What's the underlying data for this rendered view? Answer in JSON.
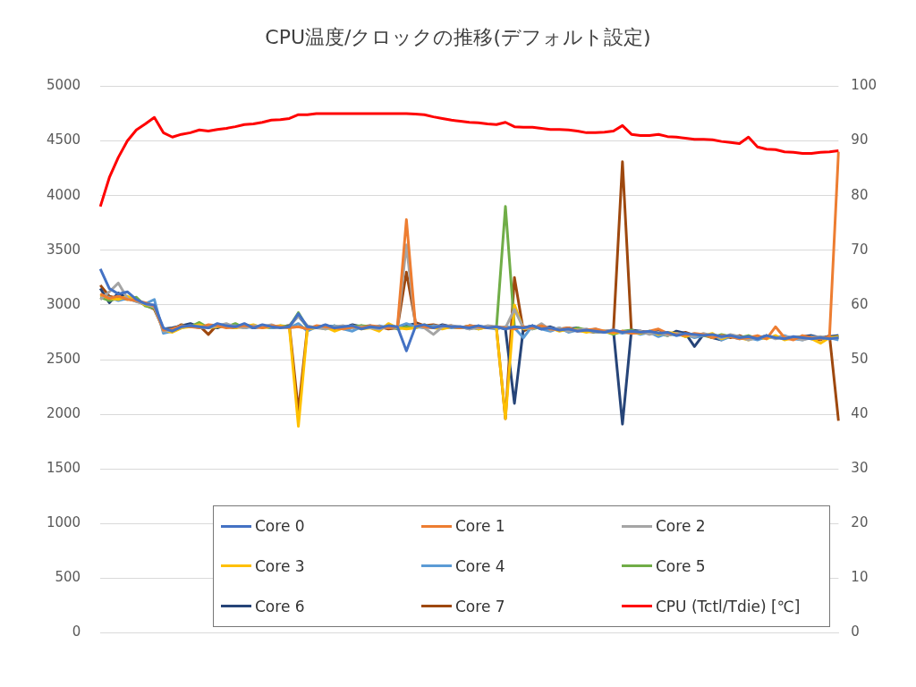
{
  "chart_data": {
    "type": "line",
    "title": "CPU温度/クロックの推移(デフォルト設定)",
    "categories": [
      null,
      null,
      null,
      null,
      null,
      null,
      null,
      null,
      null,
      null,
      null,
      null,
      null,
      null,
      null,
      null,
      null,
      null,
      null,
      null,
      null,
      null,
      null,
      null,
      null,
      null,
      null,
      null,
      null,
      null,
      null,
      null,
      null,
      null,
      null,
      null,
      null,
      null,
      null,
      null,
      null,
      null,
      null,
      null,
      null,
      null,
      null,
      null,
      null,
      null,
      null,
      null,
      null,
      null,
      null,
      null,
      null,
      null,
      null,
      null,
      null,
      null,
      null,
      null,
      null,
      null,
      null,
      null,
      null,
      null,
      null,
      null,
      null,
      null,
      null,
      null,
      null,
      null,
      null,
      null,
      null,
      null,
      null
    ],
    "ylim": [
      0,
      5000
    ],
    "yticks": [
      0,
      500,
      1000,
      1500,
      2000,
      2500,
      3000,
      3500,
      4000,
      4500,
      5000
    ],
    "y2lim": [
      0,
      100
    ],
    "y2ticks": [
      0,
      10,
      20,
      30,
      40,
      50,
      60,
      70,
      80,
      90,
      100
    ],
    "grid": "y",
    "legend": "bottom",
    "marker": "none",
    "line_style": "solid",
    "series": [
      {
        "name": "Core 0",
        "color": "#4472c4",
        "values": [
          3330,
          3150,
          3100,
          3120,
          3050,
          3010,
          3000,
          2790,
          2760,
          2800,
          2810,
          2800,
          2790,
          2830,
          2810,
          2800,
          2830,
          2790,
          2820,
          2800,
          2790,
          2800,
          2920,
          2800,
          2790,
          2820,
          2790,
          2800,
          2810,
          2780,
          2800,
          2790,
          2810,
          2800,
          2580,
          2800,
          2820,
          2790,
          2810,
          2800,
          2800,
          2790,
          2810,
          2790,
          2800,
          2780,
          2800,
          2790,
          2810,
          2780,
          2790,
          2770,
          2780,
          2760,
          2770,
          2760,
          2750,
          2770,
          2750,
          2760,
          2750,
          2760,
          2740,
          2750,
          2720,
          2740,
          2730,
          2720,
          2730,
          2710,
          2720,
          2700,
          2710,
          2690,
          2720,
          2700,
          2690,
          2710,
          2700,
          2690,
          2700,
          2690,
          2700
        ]
      },
      {
        "name": "Core 1",
        "color": "#ed7d31",
        "values": [
          3100,
          3060,
          3080,
          3050,
          3040,
          3020,
          2990,
          2770,
          2780,
          2810,
          2800,
          2790,
          2820,
          2810,
          2790,
          2800,
          2810,
          2800,
          2790,
          2810,
          2800,
          2790,
          2800,
          2780,
          2810,
          2800,
          2790,
          2780,
          2800,
          2790,
          2810,
          2800,
          2790,
          2800,
          3780,
          2820,
          2800,
          2790,
          2810,
          2800,
          2790,
          2810,
          2800,
          2790,
          2800,
          2790,
          2780,
          2800,
          2790,
          2810,
          2780,
          2770,
          2790,
          2760,
          2770,
          2780,
          2760,
          2750,
          2760,
          2740,
          2750,
          2760,
          2780,
          2740,
          2730,
          2720,
          2740,
          2730,
          2700,
          2720,
          2710,
          2690,
          2700,
          2720,
          2690,
          2800,
          2700,
          2680,
          2720,
          2700,
          2690,
          2710,
          4400
        ]
      },
      {
        "name": "Core 2",
        "color": "#a5a5a5",
        "values": [
          3050,
          3120,
          3200,
          3060,
          3030,
          3010,
          2980,
          2760,
          2770,
          2800,
          2810,
          2800,
          2790,
          2810,
          2830,
          2800,
          2790,
          2810,
          2800,
          2820,
          2790,
          2800,
          2900,
          2810,
          2790,
          2780,
          2800,
          2810,
          2790,
          2800,
          2790,
          2780,
          2800,
          2790,
          3550,
          2810,
          2790,
          2730,
          2800,
          2810,
          2800,
          2780,
          2790,
          2810,
          2800,
          2790,
          2960,
          2790,
          2780,
          2830,
          2770,
          2790,
          2760,
          2770,
          2780,
          2750,
          2760,
          2770,
          2750,
          2740,
          2760,
          2730,
          2750,
          2720,
          2740,
          2730,
          2710,
          2740,
          2720,
          2700,
          2730,
          2710,
          2680,
          2700,
          2720,
          2690,
          2710,
          2700,
          2680,
          2700,
          2710,
          2690,
          2700
        ]
      },
      {
        "name": "Core 3",
        "color": "#ffc000",
        "values": [
          3090,
          3060,
          3050,
          3080,
          3040,
          3000,
          2990,
          2770,
          2750,
          2790,
          2800,
          2820,
          2790,
          2800,
          2810,
          2790,
          2800,
          2820,
          2790,
          2800,
          2810,
          2790,
          1890,
          2780,
          2790,
          2800,
          2760,
          2790,
          2810,
          2780,
          2790,
          2760,
          2830,
          2790,
          2780,
          2790,
          2820,
          2790,
          2780,
          2800,
          2790,
          2810,
          2780,
          2800,
          2790,
          1960,
          3000,
          2780,
          2800,
          2790,
          2790,
          2760,
          2780,
          2770,
          2750,
          2770,
          2760,
          2740,
          2760,
          2750,
          2740,
          2760,
          2730,
          2750,
          2740,
          2710,
          2730,
          2720,
          2740,
          2690,
          2720,
          2700,
          2680,
          2710,
          2690,
          2720,
          2680,
          2700,
          2710,
          2690,
          2650,
          2700,
          2710
        ]
      },
      {
        "name": "Core 4",
        "color": "#5b9bd5",
        "values": [
          3080,
          3070,
          3040,
          3060,
          3030,
          3010,
          3050,
          2740,
          2760,
          2790,
          2810,
          2790,
          2800,
          2820,
          2800,
          2810,
          2790,
          2800,
          2810,
          2790,
          2800,
          2790,
          2830,
          2760,
          2800,
          2790,
          2810,
          2780,
          2760,
          2800,
          2790,
          2810,
          2790,
          2800,
          2830,
          2800,
          2790,
          2810,
          2800,
          2790,
          2800,
          2780,
          2810,
          2790,
          2780,
          2800,
          2790,
          2700,
          2810,
          2780,
          2760,
          2790,
          2750,
          2770,
          2760,
          2780,
          2750,
          2760,
          2740,
          2760,
          2730,
          2750,
          2710,
          2740,
          2720,
          2730,
          2700,
          2720,
          2730,
          2680,
          2710,
          2690,
          2700,
          2680,
          2710,
          2700,
          2720,
          2690,
          2680,
          2710,
          2690,
          2700,
          2680
        ]
      },
      {
        "name": "Core 5",
        "color": "#70ad47",
        "values": [
          3070,
          3040,
          3060,
          3050,
          3070,
          2990,
          2970,
          2780,
          2770,
          2810,
          2800,
          2840,
          2790,
          2810,
          2800,
          2830,
          2790,
          2810,
          2800,
          2790,
          2810,
          2800,
          2930,
          2790,
          2800,
          2780,
          2810,
          2790,
          2800,
          2810,
          2800,
          2790,
          2810,
          2780,
          2800,
          2790,
          2810,
          2800,
          2790,
          2800,
          2790,
          2800,
          2780,
          2800,
          2790,
          3900,
          2800,
          2790,
          2780,
          2800,
          2770,
          2780,
          2760,
          2790,
          2770,
          2750,
          2760,
          2730,
          2760,
          2770,
          2740,
          2750,
          2730,
          2720,
          2740,
          2710,
          2730,
          2720,
          2700,
          2730,
          2710,
          2700,
          2720,
          2690,
          2700,
          2710,
          2690,
          2700,
          2710,
          2690,
          2700,
          2690,
          2710
        ]
      },
      {
        "name": "Core 6",
        "color": "#264478",
        "values": [
          3150,
          3020,
          3110,
          3060,
          3040,
          3000,
          2980,
          2780,
          2790,
          2810,
          2830,
          2800,
          2810,
          2790,
          2820,
          2800,
          2810,
          2790,
          2800,
          2810,
          2800,
          2810,
          2900,
          2800,
          2790,
          2810,
          2800,
          2790,
          2820,
          2800,
          2810,
          2790,
          2800,
          2790,
          2810,
          2830,
          2800,
          2790,
          2820,
          2800,
          2790,
          2810,
          2800,
          2790,
          2800,
          2780,
          2100,
          2790,
          2810,
          2780,
          2800,
          2770,
          2780,
          2790,
          2760,
          2770,
          2750,
          2760,
          1910,
          2770,
          2760,
          2750,
          2770,
          2720,
          2760,
          2740,
          2620,
          2730,
          2700,
          2680,
          2720,
          2710,
          2700,
          2690,
          2720,
          2700,
          2710,
          2690,
          2710,
          2720,
          2700,
          2710,
          2720
        ]
      },
      {
        "name": "Core 7",
        "color": "#9e480e",
        "values": [
          3180,
          3080,
          3060,
          3070,
          3040,
          3000,
          2960,
          2780,
          2770,
          2820,
          2800,
          2810,
          2730,
          2820,
          2800,
          2790,
          2820,
          2800,
          2810,
          2790,
          2800,
          2810,
          2030,
          2790,
          2800,
          2810,
          2780,
          2800,
          2790,
          2810,
          2790,
          2800,
          2780,
          2790,
          3300,
          2840,
          2810,
          2820,
          2800,
          2810,
          2790,
          2800,
          2790,
          2800,
          2790,
          1960,
          3250,
          2760,
          2800,
          2790,
          2780,
          2780,
          2790,
          2770,
          2760,
          2750,
          2760,
          2770,
          4310,
          2750,
          2760,
          2740,
          2760,
          2740,
          2730,
          2750,
          2720,
          2730,
          2710,
          2720,
          2700,
          2720,
          2690,
          2710,
          2700,
          2710,
          2700,
          2690,
          2710,
          2700,
          2680,
          2720,
          1940
        ]
      },
      {
        "name": "CPU (Tctl/Tdie) [℃]",
        "color": "#ff0000",
        "axis": "y2",
        "values": [
          78,
          83.3,
          87,
          90,
          92,
          93.1,
          94.3,
          91.5,
          90.7,
          91.2,
          91.5,
          92,
          91.8,
          92.1,
          92.3,
          92.6,
          93,
          93.1,
          93.4,
          93.8,
          93.9,
          94.1,
          94.8,
          94.8,
          95,
          95,
          95,
          95,
          95,
          95,
          95,
          95,
          95,
          95,
          95,
          94.9,
          94.8,
          94.4,
          94.1,
          93.8,
          93.6,
          93.4,
          93.3,
          93.1,
          93,
          93.4,
          92.6,
          92.5,
          92.5,
          92.3,
          92.1,
          92.1,
          92,
          91.8,
          91.5,
          91.5,
          91.6,
          91.8,
          92.8,
          91.2,
          91,
          91,
          91.2,
          90.8,
          90.7,
          90.5,
          90.3,
          90.3,
          90.2,
          89.9,
          89.7,
          89.5,
          90.7,
          88.9,
          88.5,
          88.4,
          88,
          87.9,
          87.7,
          87.7,
          87.9,
          88,
          88.2
        ]
      }
    ]
  }
}
